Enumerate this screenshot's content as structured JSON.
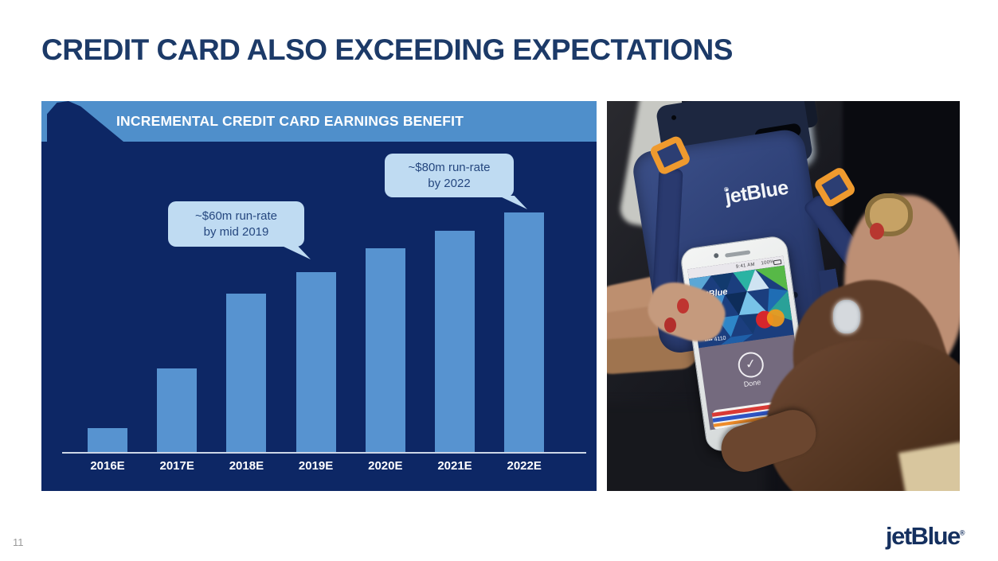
{
  "slide": {
    "title": "CREDIT CARD ALSO EXCEEDING EXPECTATIONS",
    "page_number": "11",
    "brand_logo": "jetBlue",
    "brand_logo_reg": "®"
  },
  "chart_panel": {
    "header": "INCREMENTAL CREDIT CARD EARNINGS BENEFIT",
    "colors": {
      "panel_navy": "#0d2765",
      "banner_blue": "#4f8fcb",
      "bar_blue": "#5793d0",
      "callout_blue": "#bfdbf2",
      "title_navy": "#1c3a68",
      "logo_navy": "#15305f"
    }
  },
  "chart_data": {
    "type": "bar",
    "title": "INCREMENTAL CREDIT CARD EARNINGS BENEFIT",
    "categories": [
      "2016E",
      "2017E",
      "2018E",
      "2019E",
      "2020E",
      "2021E",
      "2022E"
    ],
    "values": [
      8,
      28,
      53,
      60,
      68,
      74,
      80
    ],
    "value_unit": "$m",
    "xlabel": "",
    "ylabel": "",
    "ylim": [
      0,
      85
    ],
    "grid": false,
    "legend": null,
    "annotations": [
      {
        "line1": "~$60m run-rate",
        "line2": "by mid 2019",
        "points_to": "2019E"
      },
      {
        "line1": "~$80m run-rate",
        "line2": "by 2022",
        "points_to": "2022E"
      }
    ]
  },
  "photo": {
    "terminal": {
      "brand": "jetBlue",
      "brand_reg": "®"
    },
    "phone": {
      "status_time": "9:41 AM",
      "battery_label": "100%",
      "card_brand": "jetBlue",
      "card_digits": "•••• 4110",
      "done_label": "Done",
      "check_glyph": "✓"
    }
  }
}
